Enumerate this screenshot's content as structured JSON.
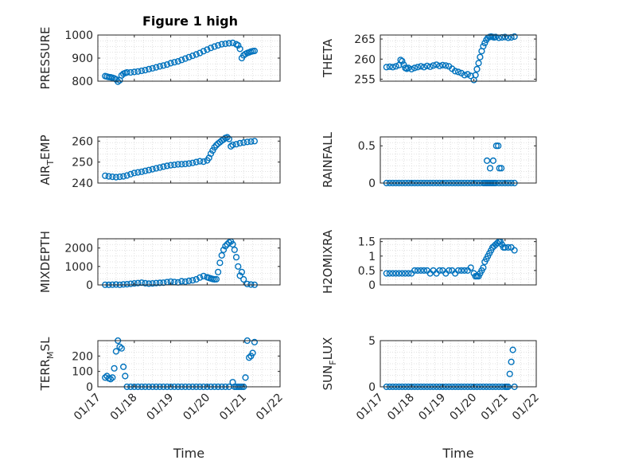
{
  "figure": {
    "title": "Figure 1 high",
    "marker_color": "#0072BD"
  },
  "chart_data": [
    {
      "type": "scatter",
      "ylabel": "PRESSURE",
      "xlabel": "",
      "title": "Figure 1 high",
      "xlim": [
        0,
        5
      ],
      "ylim": [
        800,
        1000
      ],
      "yticks": [
        800,
        900,
        1000
      ],
      "xticks": [
        0,
        1,
        2,
        3,
        4,
        5
      ],
      "xtick_labels": [],
      "grid": true,
      "x": [
        0.2,
        0.25,
        0.3,
        0.35,
        0.4,
        0.45,
        0.5,
        0.55,
        0.6,
        0.65,
        0.7,
        0.75,
        0.8,
        0.9,
        1.0,
        1.1,
        1.2,
        1.3,
        1.4,
        1.5,
        1.6,
        1.7,
        1.8,
        1.9,
        2.0,
        2.1,
        2.2,
        2.3,
        2.4,
        2.5,
        2.6,
        2.7,
        2.8,
        2.9,
        3.0,
        3.1,
        3.2,
        3.3,
        3.4,
        3.5,
        3.6,
        3.7,
        3.8,
        3.85,
        3.9,
        3.95,
        4.0,
        4.05,
        4.1,
        4.15,
        4.2,
        4.25,
        4.3
      ],
      "y": [
        822,
        820,
        818,
        817,
        815,
        812,
        808,
        798,
        804,
        825,
        832,
        835,
        838,
        838,
        840,
        842,
        845,
        848,
        852,
        856,
        860,
        864,
        868,
        872,
        878,
        882,
        886,
        892,
        898,
        904,
        910,
        916,
        922,
        930,
        937,
        944,
        950,
        955,
        960,
        962,
        964,
        966,
        960,
        955,
        940,
        900,
        912,
        918,
        922,
        925,
        928,
        930,
        931
      ]
    },
    {
      "type": "scatter",
      "ylabel": "THETA",
      "xlabel": "",
      "xlim": [
        0,
        5
      ],
      "ylim": [
        254.5,
        266
      ],
      "yticks": [
        255,
        260,
        265
      ],
      "xticks": [
        0,
        1,
        2,
        3,
        4,
        5
      ],
      "xtick_labels": [],
      "grid": true,
      "x": [
        0.2,
        0.3,
        0.4,
        0.5,
        0.6,
        0.65,
        0.7,
        0.75,
        0.8,
        0.85,
        0.9,
        1.0,
        1.1,
        1.2,
        1.3,
        1.4,
        1.5,
        1.6,
        1.7,
        1.8,
        1.9,
        2.0,
        2.1,
        2.2,
        2.3,
        2.4,
        2.5,
        2.6,
        2.7,
        2.8,
        2.9,
        3.0,
        3.05,
        3.1,
        3.15,
        3.2,
        3.25,
        3.3,
        3.35,
        3.4,
        3.45,
        3.5,
        3.55,
        3.6,
        3.65,
        3.7,
        3.8,
        3.9,
        4.0,
        4.1,
        4.2,
        4.3
      ],
      "y": [
        258.0,
        258.1,
        258.0,
        258.2,
        258.5,
        259.8,
        259.5,
        258.6,
        257.8,
        257.6,
        257.8,
        257.5,
        257.8,
        258.0,
        258.2,
        258.0,
        258.3,
        258.1,
        258.4,
        258.6,
        258.3,
        258.5,
        258.4,
        258.2,
        257.6,
        257.0,
        256.8,
        256.5,
        256.0,
        256.2,
        255.8,
        254.8,
        256.0,
        257.5,
        259.0,
        260.5,
        262.0,
        263.2,
        264.0,
        264.8,
        265.3,
        265.5,
        265.6,
        265.5,
        265.4,
        265.5,
        265.3,
        265.4,
        265.5,
        265.3,
        265.4,
        265.6
      ]
    },
    {
      "type": "scatter",
      "ylabel": "AIR_TEMP",
      "xlabel": "",
      "xlim": [
        0,
        5
      ],
      "ylim": [
        240,
        262
      ],
      "yticks": [
        240,
        250,
        260
      ],
      "xticks": [
        0,
        1,
        2,
        3,
        4,
        5
      ],
      "xtick_labels": [],
      "grid": true,
      "x": [
        0.2,
        0.3,
        0.4,
        0.5,
        0.6,
        0.7,
        0.8,
        0.9,
        1.0,
        1.1,
        1.2,
        1.3,
        1.4,
        1.5,
        1.6,
        1.7,
        1.8,
        1.9,
        2.0,
        2.1,
        2.2,
        2.3,
        2.4,
        2.5,
        2.6,
        2.7,
        2.8,
        2.9,
        3.0,
        3.05,
        3.1,
        3.15,
        3.2,
        3.25,
        3.3,
        3.35,
        3.4,
        3.45,
        3.5,
        3.55,
        3.6,
        3.65,
        3.7,
        3.8,
        3.9,
        4.0,
        4.1,
        4.2,
        4.3
      ],
      "y": [
        243.5,
        243.2,
        243.0,
        242.8,
        243.0,
        243.2,
        243.6,
        244.2,
        244.8,
        245.1,
        245.4,
        245.8,
        246.2,
        246.6,
        247.0,
        247.4,
        247.8,
        248.2,
        248.5,
        248.7,
        248.9,
        249.0,
        249.1,
        249.3,
        249.6,
        250.0,
        250.4,
        250.2,
        250.8,
        252.0,
        254.0,
        255.5,
        257.0,
        258.0,
        258.8,
        259.5,
        260.2,
        260.8,
        261.5,
        261.8,
        261.0,
        257.5,
        258.2,
        258.5,
        259.0,
        259.3,
        259.6,
        259.8,
        260.0
      ]
    },
    {
      "type": "scatter",
      "ylabel": "RAINFALL",
      "xlabel": "",
      "xlim": [
        0,
        5
      ],
      "ylim": [
        0,
        0.62
      ],
      "yticks": [
        0,
        0.5
      ],
      "xticks": [
        0,
        1,
        2,
        3,
        4,
        5
      ],
      "xtick_labels": [],
      "grid": true,
      "x": [
        0.2,
        0.3,
        0.4,
        0.5,
        0.6,
        0.7,
        0.8,
        0.9,
        1.0,
        1.1,
        1.2,
        1.3,
        1.4,
        1.5,
        1.6,
        1.7,
        1.8,
        1.9,
        2.0,
        2.1,
        2.2,
        2.3,
        2.4,
        2.5,
        2.6,
        2.7,
        2.8,
        2.9,
        3.0,
        3.1,
        3.2,
        3.3,
        3.35,
        3.4,
        3.45,
        3.5,
        3.55,
        3.6,
        3.65,
        3.7,
        3.8,
        3.9,
        4.0,
        4.1,
        4.2,
        4.3,
        3.42,
        3.52,
        3.62,
        3.72,
        3.78,
        3.82,
        3.88
      ],
      "y": [
        0,
        0,
        0,
        0,
        0,
        0,
        0,
        0,
        0,
        0,
        0,
        0,
        0,
        0,
        0,
        0,
        0,
        0,
        0,
        0,
        0,
        0,
        0,
        0,
        0,
        0,
        0,
        0,
        0,
        0,
        0,
        0,
        0,
        0,
        0,
        0,
        0,
        0,
        0,
        0,
        0,
        0,
        0,
        0,
        0,
        0,
        0.3,
        0.2,
        0.3,
        0.5,
        0.5,
        0.2,
        0.2
      ]
    },
    {
      "type": "scatter",
      "ylabel": "MIXDEPTH",
      "xlabel": "",
      "xlim": [
        0,
        5
      ],
      "ylim": [
        0,
        2500
      ],
      "yticks": [
        0,
        1000,
        2000
      ],
      "xticks": [
        0,
        1,
        2,
        3,
        4,
        5
      ],
      "xtick_labels": [],
      "grid": true,
      "x": [
        0.2,
        0.3,
        0.4,
        0.5,
        0.6,
        0.7,
        0.8,
        0.9,
        1.0,
        1.1,
        1.2,
        1.3,
        1.4,
        1.5,
        1.6,
        1.7,
        1.8,
        1.9,
        2.0,
        2.1,
        2.2,
        2.3,
        2.4,
        2.5,
        2.6,
        2.7,
        2.8,
        2.9,
        3.0,
        3.05,
        3.1,
        3.15,
        3.2,
        3.25,
        3.3,
        3.35,
        3.4,
        3.45,
        3.5,
        3.55,
        3.6,
        3.65,
        3.7,
        3.75,
        3.8,
        3.85,
        3.9,
        3.95,
        4.0,
        4.1,
        4.2,
        4.3
      ],
      "y": [
        10,
        5,
        15,
        20,
        10,
        30,
        40,
        60,
        80,
        100,
        120,
        90,
        70,
        80,
        100,
        110,
        120,
        150,
        180,
        160,
        140,
        200,
        180,
        220,
        250,
        300,
        400,
        480,
        420,
        380,
        350,
        320,
        300,
        310,
        700,
        1200,
        1600,
        1900,
        2100,
        2200,
        2300,
        2350,
        2200,
        1900,
        1500,
        1000,
        500,
        700,
        300,
        50,
        20,
        10
      ]
    },
    {
      "type": "scatter",
      "ylabel": "H2OMIXRA",
      "xlabel": "",
      "xlim": [
        0,
        5
      ],
      "ylim": [
        0,
        1.6
      ],
      "yticks": [
        0,
        0.5,
        1,
        1.5
      ],
      "xticks": [
        0,
        1,
        2,
        3,
        4,
        5
      ],
      "xtick_labels": [],
      "grid": true,
      "x": [
        0.2,
        0.3,
        0.4,
        0.5,
        0.6,
        0.7,
        0.8,
        0.9,
        1.0,
        1.1,
        1.2,
        1.3,
        1.4,
        1.5,
        1.6,
        1.7,
        1.8,
        1.9,
        2.0,
        2.1,
        2.2,
        2.3,
        2.4,
        2.5,
        2.6,
        2.7,
        2.8,
        2.9,
        3.0,
        3.05,
        3.1,
        3.15,
        3.2,
        3.25,
        3.3,
        3.35,
        3.4,
        3.45,
        3.5,
        3.55,
        3.6,
        3.65,
        3.7,
        3.75,
        3.8,
        3.85,
        3.9,
        3.95,
        4.0,
        4.1,
        4.2,
        4.3
      ],
      "y": [
        0.4,
        0.4,
        0.4,
        0.4,
        0.4,
        0.4,
        0.4,
        0.4,
        0.4,
        0.5,
        0.5,
        0.5,
        0.5,
        0.5,
        0.4,
        0.5,
        0.4,
        0.5,
        0.5,
        0.4,
        0.5,
        0.5,
        0.4,
        0.5,
        0.5,
        0.5,
        0.5,
        0.6,
        0.4,
        0.3,
        0.3,
        0.3,
        0.4,
        0.5,
        0.6,
        0.8,
        0.9,
        1.0,
        1.1,
        1.2,
        1.3,
        1.35,
        1.4,
        1.45,
        1.5,
        1.5,
        1.4,
        1.3,
        1.3,
        1.3,
        1.3,
        1.2
      ]
    },
    {
      "type": "scatter",
      "ylabel": "TERR_MSL",
      "xlabel": "Time",
      "xlim": [
        0,
        5
      ],
      "ylim": [
        0,
        300
      ],
      "yticks": [
        0,
        100,
        200
      ],
      "xticks": [
        0,
        1,
        2,
        3,
        4,
        5
      ],
      "xtick_labels": [
        "01/17",
        "01/18",
        "01/19",
        "01/20",
        "01/21",
        "01/22"
      ],
      "grid": true,
      "x": [
        0.2,
        0.25,
        0.3,
        0.35,
        0.4,
        0.45,
        0.5,
        0.55,
        0.6,
        0.65,
        0.7,
        0.75,
        0.8,
        0.9,
        1.0,
        1.1,
        1.2,
        1.3,
        1.4,
        1.5,
        1.6,
        1.7,
        1.8,
        1.9,
        2.0,
        2.1,
        2.2,
        2.3,
        2.4,
        2.5,
        2.6,
        2.7,
        2.8,
        2.9,
        3.0,
        3.1,
        3.2,
        3.3,
        3.4,
        3.5,
        3.6,
        3.7,
        3.75,
        3.8,
        3.85,
        3.9,
        3.95,
        4.0,
        4.05,
        4.1,
        4.15,
        4.2,
        4.25,
        4.3
      ],
      "y": [
        60,
        70,
        55,
        50,
        60,
        120,
        230,
        300,
        260,
        250,
        130,
        70,
        0,
        0,
        0,
        0,
        0,
        0,
        0,
        0,
        0,
        0,
        0,
        0,
        0,
        0,
        0,
        0,
        0,
        0,
        0,
        0,
        0,
        0,
        0,
        0,
        0,
        0,
        0,
        0,
        0,
        30,
        0,
        0,
        0,
        0,
        0,
        0,
        60,
        300,
        190,
        200,
        220,
        290
      ]
    },
    {
      "type": "scatter",
      "ylabel": "SUN_FLUX",
      "xlabel": "Time",
      "xlim": [
        0,
        5
      ],
      "ylim": [
        0,
        5
      ],
      "yticks": [
        0,
        5
      ],
      "xticks": [
        0,
        1,
        2,
        3,
        4,
        5
      ],
      "xtick_labels": [
        "01/17",
        "01/18",
        "01/19",
        "01/20",
        "01/21",
        "01/22"
      ],
      "grid": true,
      "x": [
        0.2,
        0.3,
        0.4,
        0.5,
        0.6,
        0.7,
        0.8,
        0.9,
        1.0,
        1.1,
        1.2,
        1.3,
        1.4,
        1.5,
        1.6,
        1.7,
        1.8,
        1.9,
        2.0,
        2.1,
        2.2,
        2.3,
        2.4,
        2.5,
        2.6,
        2.7,
        2.8,
        2.9,
        3.0,
        3.1,
        3.2,
        3.3,
        3.4,
        3.5,
        3.6,
        3.7,
        3.8,
        3.9,
        4.0,
        4.05,
        4.1,
        4.15,
        4.2,
        4.25,
        4.3
      ],
      "y": [
        0,
        0,
        0,
        0,
        0,
        0,
        0,
        0,
        0,
        0,
        0,
        0,
        0,
        0,
        0,
        0,
        0,
        0,
        0,
        0,
        0,
        0,
        0,
        0,
        0,
        0,
        0,
        0,
        0,
        0,
        0,
        0,
        0,
        0,
        0,
        0,
        0,
        0,
        0,
        0,
        0,
        1.4,
        2.7,
        4.0,
        0
      ]
    }
  ]
}
